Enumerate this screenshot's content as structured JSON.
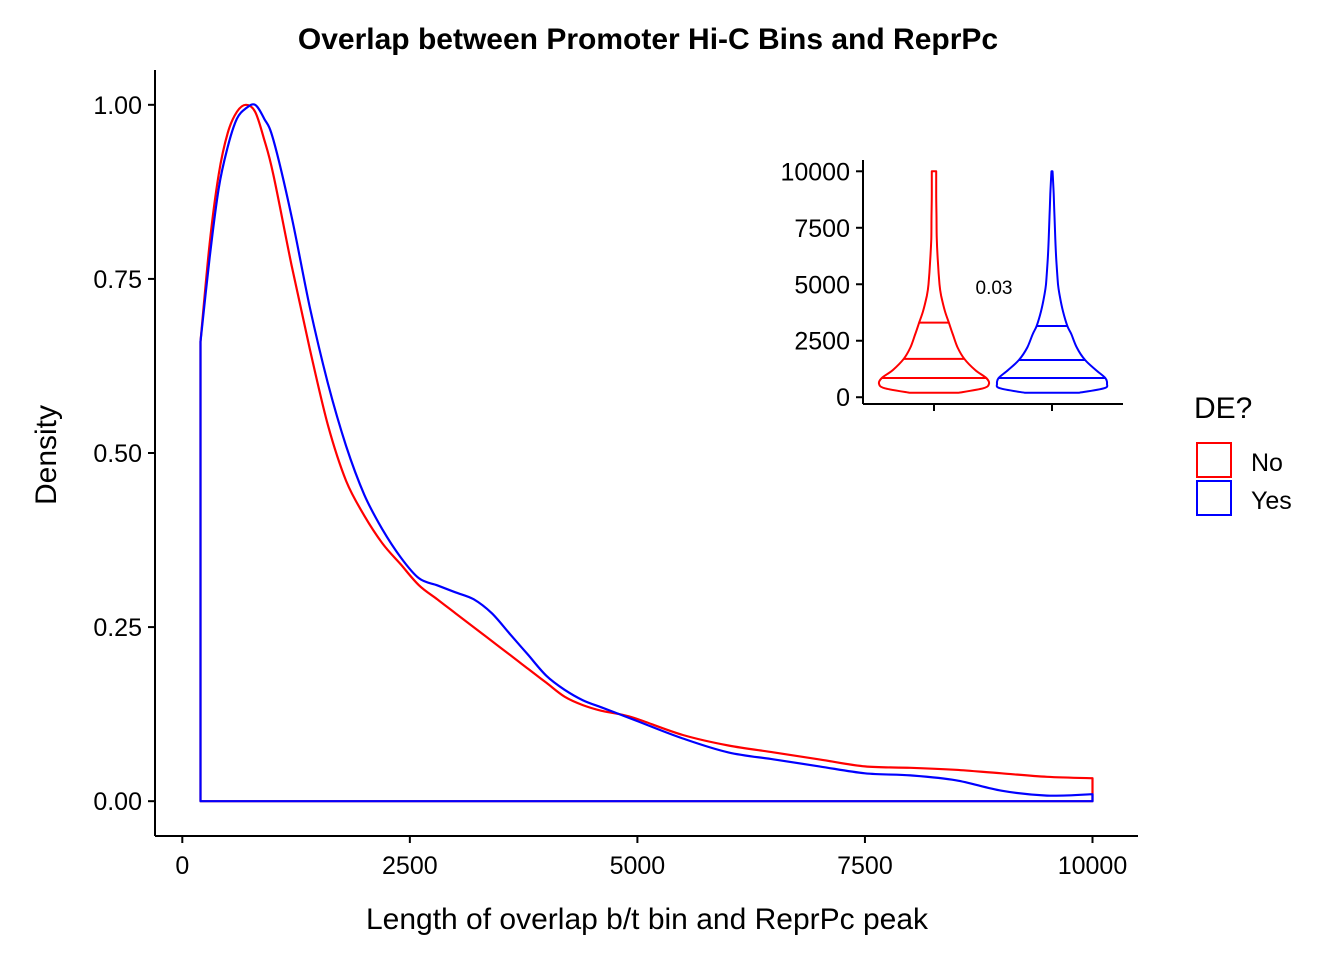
{
  "chart_data": [
    {
      "type": "density",
      "title": "Overlap between Promoter Hi-C Bins and ReprPc",
      "xlabel": "Length of overlap b/t bin and ReprPc peak",
      "ylabel": "Density",
      "xlim": [
        -300,
        10500
      ],
      "ylim": [
        -0.05,
        1.05
      ],
      "xticks": [
        0,
        2500,
        5000,
        7500,
        10000
      ],
      "xtick_labels": [
        "0",
        "2500",
        "5000",
        "7500",
        "10000"
      ],
      "yticks": [
        0,
        0.25,
        0.5,
        0.75,
        1.0
      ],
      "ytick_labels": [
        "0.00",
        "0.25",
        "0.50",
        "0.75",
        "1.00"
      ],
      "grid": false,
      "series": [
        {
          "name": "No",
          "color": "#FF0000",
          "x": [
            200,
            300,
            400,
            500,
            600,
            700,
            800,
            900,
            1000,
            1200,
            1400,
            1600,
            1800,
            2000,
            2200,
            2400,
            2600,
            2800,
            3000,
            3200,
            3400,
            3600,
            3800,
            4000,
            4200,
            4400,
            4600,
            4800,
            5000,
            5500,
            6000,
            6500,
            7000,
            7500,
            8000,
            8500,
            9000,
            9500,
            10000
          ],
          "y": [
            0.66,
            0.8,
            0.9,
            0.96,
            0.99,
            1.0,
            0.99,
            0.95,
            0.9,
            0.77,
            0.65,
            0.54,
            0.46,
            0.41,
            0.37,
            0.34,
            0.31,
            0.29,
            0.27,
            0.25,
            0.23,
            0.21,
            0.19,
            0.17,
            0.15,
            0.138,
            0.13,
            0.125,
            0.118,
            0.095,
            0.08,
            0.07,
            0.06,
            0.05,
            0.048,
            0.045,
            0.04,
            0.035,
            0.033
          ]
        },
        {
          "name": "Yes",
          "color": "#0000FF",
          "x": [
            200,
            300,
            400,
            500,
            600,
            700,
            800,
            900,
            1000,
            1200,
            1400,
            1600,
            1800,
            2000,
            2200,
            2400,
            2600,
            2800,
            3000,
            3200,
            3400,
            3600,
            3800,
            4000,
            4200,
            4400,
            4600,
            4800,
            5000,
            5500,
            6000,
            6500,
            7000,
            7500,
            8000,
            8500,
            9000,
            9500,
            10000
          ],
          "y": [
            0.66,
            0.78,
            0.88,
            0.94,
            0.98,
            0.995,
            1.0,
            0.98,
            0.95,
            0.84,
            0.71,
            0.6,
            0.51,
            0.44,
            0.39,
            0.35,
            0.32,
            0.31,
            0.3,
            0.29,
            0.27,
            0.24,
            0.21,
            0.18,
            0.16,
            0.145,
            0.135,
            0.125,
            0.115,
            0.09,
            0.07,
            0.06,
            0.05,
            0.04,
            0.037,
            0.03,
            0.015,
            0.008,
            0.01
          ]
        }
      ]
    },
    {
      "type": "violin",
      "ylim": [
        -300,
        10500
      ],
      "yticks": [
        0,
        2500,
        5000,
        7500,
        10000
      ],
      "ytick_labels": [
        "0",
        "2500",
        "5000",
        "7500",
        "10000"
      ],
      "xlabel": "",
      "ylabel": "",
      "annotation": "0.03",
      "series": [
        {
          "name": "No",
          "color": "#FF0000",
          "quantiles": [
            850,
            1700,
            3300
          ],
          "profile_y": [
            200,
            400,
            600,
            850,
            1200,
            1700,
            2200,
            2800,
            3300,
            3800,
            4500,
            5000,
            6000,
            7000,
            8000,
            9000,
            9800,
            10000
          ],
          "profile_halfwidth": [
            0.45,
            0.9,
            1.0,
            0.95,
            0.75,
            0.55,
            0.43,
            0.34,
            0.27,
            0.2,
            0.13,
            0.1,
            0.07,
            0.05,
            0.045,
            0.04,
            0.04,
            0.04
          ]
        },
        {
          "name": "Yes",
          "color": "#0000FF",
          "quantiles": [
            850,
            1650,
            3150
          ],
          "profile_y": [
            200,
            400,
            600,
            850,
            1200,
            1650,
            2200,
            2800,
            3150,
            3800,
            4500,
            5000,
            6000,
            7000,
            8000,
            9000,
            9800,
            10000
          ],
          "profile_halfwidth": [
            0.5,
            0.95,
            1.0,
            0.97,
            0.8,
            0.6,
            0.45,
            0.35,
            0.28,
            0.2,
            0.14,
            0.11,
            0.08,
            0.06,
            0.045,
            0.03,
            0.015,
            0.01
          ]
        }
      ]
    }
  ],
  "legend": {
    "title": "DE?",
    "placement": "right",
    "items": [
      {
        "label": "No",
        "color": "#FF0000"
      },
      {
        "label": "Yes",
        "color": "#0000FF"
      }
    ]
  }
}
